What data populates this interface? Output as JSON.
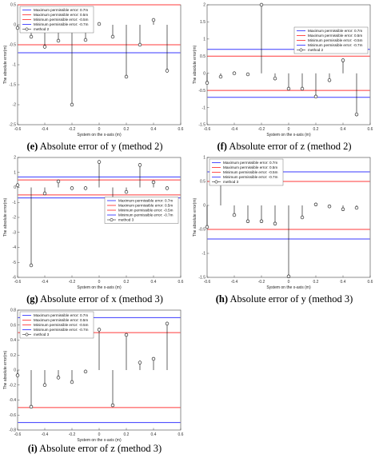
{
  "figure": {
    "legend_labels": [
      "Maximum permissible error: 0.7m",
      "Maximum permissible error: 0.5m",
      "Minimum permissible error: -0.5m",
      "Minimum permissible error: -0.7m"
    ],
    "colors": {
      "limit_07": "#3a3aff",
      "limit_05": "#ff3a3a",
      "stem": "#000000"
    }
  },
  "chart_data": [
    {
      "id": "e",
      "type": "stem",
      "caption": {
        "letter": "(e)",
        "text": " Absolute error of y (method 2)"
      },
      "xlabel": "System on the x-axis (m)",
      "ylabel": "The absolute error(m)",
      "xlim": [
        -0.6,
        0.6
      ],
      "ylim": [
        -2.5,
        0.5
      ],
      "xticks": [
        "-0.6",
        "-0.4",
        "-0.2",
        "0",
        "0.2",
        "0.4",
        "0.6"
      ],
      "yticks": [
        "0.5",
        "0",
        "-0.5",
        "-1",
        "-1.5",
        "-2",
        "-2.5"
      ],
      "legend_position": "top-left",
      "series_label": "method 2",
      "limits": [
        0.7,
        0.5,
        -0.5,
        -0.7
      ],
      "x": [
        -0.6,
        -0.5,
        -0.4,
        -0.3,
        -0.2,
        -0.1,
        0,
        0.1,
        0.2,
        0.3,
        0.4,
        0.5
      ],
      "y": [
        -0.08,
        -0.3,
        -0.55,
        -0.4,
        -2.0,
        -0.38,
        0.02,
        -0.3,
        -1.3,
        -0.5,
        0.12,
        -1.15
      ]
    },
    {
      "id": "f",
      "type": "stem",
      "caption": {
        "letter": "(f)",
        "text": " Absolute error of z (method 2)"
      },
      "xlabel": "System on the x-axis (m)",
      "ylabel": "The absolute error(m)",
      "xlim": [
        -0.6,
        0.6
      ],
      "ylim": [
        -1.5,
        2
      ],
      "xticks": [
        "-0.6",
        "-0.4",
        "-0.2",
        "0",
        "0.2",
        "0.4",
        "0.6"
      ],
      "yticks": [
        "2",
        "1.5",
        "1",
        "0.5",
        "0",
        "-0.5",
        "-1",
        "-1.5"
      ],
      "legend_position": "top-right",
      "series_label": "method 2",
      "limits": [
        0.7,
        0.5,
        -0.5,
        -0.7
      ],
      "x": [
        -0.6,
        -0.5,
        -0.4,
        -0.3,
        -0.2,
        -0.1,
        0,
        0.1,
        0.2,
        0.3,
        0.4,
        0.5
      ],
      "y": [
        -0.28,
        -0.1,
        0.0,
        -0.03,
        2.0,
        -0.15,
        -0.45,
        -0.45,
        -0.68,
        -0.2,
        0.38,
        -1.2
      ]
    },
    {
      "id": "g",
      "type": "stem",
      "caption": {
        "letter": "(g)",
        "text": " Absolute error of x (method 3)"
      },
      "xlabel": "System on the x-axis (m)",
      "ylabel": "The absolute error(m)",
      "xlim": [
        -0.6,
        0.6
      ],
      "ylim": [
        -6,
        2
      ],
      "xticks": [
        "-0.6",
        "-0.4",
        "-0.2",
        "0",
        "0.2",
        "0.4",
        "0.6"
      ],
      "yticks": [
        "2",
        "1",
        "0",
        "-1",
        "-2",
        "-3",
        "-4",
        "-5",
        "-6"
      ],
      "legend_position": "center-right",
      "series_label": "method 3",
      "limits": [
        0.7,
        0.5,
        -0.5,
        -0.7
      ],
      "x": [
        -0.6,
        -0.5,
        -0.4,
        -0.3,
        -0.2,
        -0.1,
        0,
        0.1,
        0.2,
        0.3,
        0.4,
        0.5
      ],
      "y": [
        0.15,
        -5.2,
        -0.4,
        0.4,
        -0.05,
        -0.05,
        1.7,
        -1.5,
        -0.3,
        1.5,
        0.35,
        -0.05
      ]
    },
    {
      "id": "h",
      "type": "stem",
      "caption": {
        "letter": "(h)",
        "text": " Absolute error of y (method 3)"
      },
      "xlabel": "System on the x-axis (m)",
      "ylabel": "The absolute error(m)",
      "xlim": [
        -0.6,
        0.6
      ],
      "ylim": [
        -1.5,
        1
      ],
      "xticks": [
        "-0.6",
        "-0.4",
        "-0.2",
        "0",
        "0.2",
        "0.4",
        "0.6"
      ],
      "yticks": [
        "1",
        "0.5",
        "0",
        "-0.5",
        "-1",
        "-1.5"
      ],
      "legend_position": "top-left",
      "series_label": "method 3",
      "limits": [
        0.7,
        0.5,
        -0.5,
        -0.7
      ],
      "x": [
        -0.6,
        -0.5,
        -0.4,
        -0.3,
        -0.2,
        -0.1,
        0,
        0.1,
        0.2,
        0.3,
        0.4,
        0.5
      ],
      "y": [
        -0.45,
        0.5,
        -0.2,
        -0.33,
        -0.33,
        -0.38,
        -1.48,
        -0.25,
        0.02,
        -0.02,
        -0.08,
        -0.05
      ]
    },
    {
      "id": "i",
      "type": "stem",
      "caption": {
        "letter": "(i)",
        "text": " Absolute error of z (method 3)"
      },
      "xlabel": "System on the x-axis (m)",
      "ylabel": "The absolute error(m)",
      "xlim": [
        -0.6,
        0.6
      ],
      "ylim": [
        -0.8,
        0.8
      ],
      "xticks": [
        "-0.6",
        "-0.4",
        "-0.2",
        "0",
        "0.2",
        "0.4",
        "0.6"
      ],
      "yticks": [
        "0.8",
        "0.6",
        "0.4",
        "0.2",
        "0",
        "-0.2",
        "-0.4",
        "-0.6",
        "-0.8"
      ],
      "legend_position": "top-left",
      "series_label": "method 3",
      "limits": [
        0.7,
        0.5,
        -0.5,
        -0.7
      ],
      "x": [
        -0.6,
        -0.5,
        -0.4,
        -0.3,
        -0.2,
        -0.1,
        0,
        0.1,
        0.2,
        0.3,
        0.4,
        0.5
      ],
      "y": [
        -0.07,
        -0.49,
        -0.2,
        -0.1,
        -0.16,
        -0.02,
        0.54,
        -0.47,
        0.47,
        0.1,
        0.15,
        0.62
      ]
    }
  ]
}
